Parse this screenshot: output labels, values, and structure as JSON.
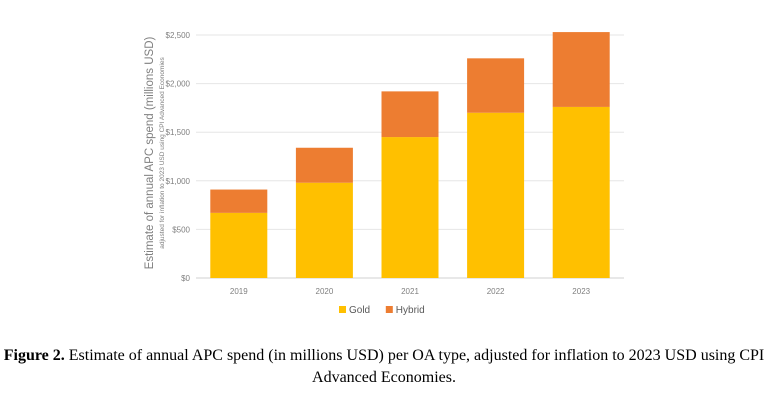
{
  "chart_data": {
    "type": "bar",
    "stacked": true,
    "categories": [
      "2019",
      "2020",
      "2021",
      "2022",
      "2023"
    ],
    "series": [
      {
        "name": "Gold",
        "color": "#FFC000",
        "values": [
          670,
          980,
          1450,
          1700,
          1760
        ]
      },
      {
        "name": "Hybrid",
        "color": "#ED7D31",
        "values": [
          240,
          360,
          470,
          560,
          770
        ]
      }
    ],
    "ylabel": "Estimate of annual APC spend (millions USD)",
    "ylabel_sub": "adjusted for inflation to 2023 USD using CPI Advanced Economies",
    "yticks": [
      0,
      500,
      1000,
      1500,
      2000,
      2500
    ],
    "ytick_labels": [
      "$0",
      "$500",
      "$1,000",
      "$1,500",
      "$2,000",
      "$2,500"
    ],
    "ylim": [
      0,
      2500
    ],
    "grid": true,
    "legend": "bottom-center"
  },
  "caption": {
    "label": "Figure 2.",
    "text": "Estimate of annual APC spend (in millions USD) per OA type, adjusted for inflation to 2023 USD using CPI Advanced Economies."
  }
}
